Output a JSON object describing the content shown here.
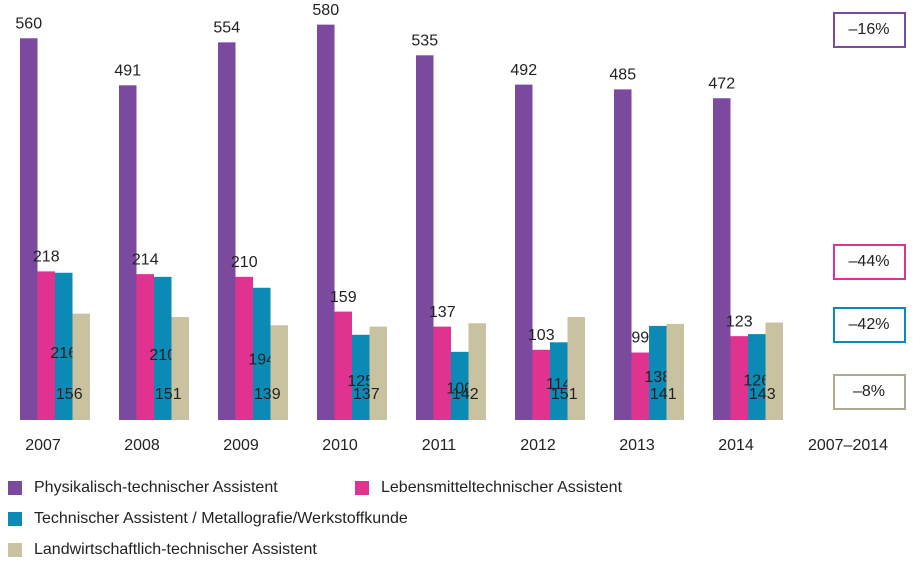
{
  "chart_data": {
    "type": "bar",
    "categories": [
      "2007",
      "2008",
      "2009",
      "2010",
      "2011",
      "2012",
      "2013",
      "2014"
    ],
    "change_label": "2007–2014",
    "ylim": [
      0,
      600
    ],
    "series": [
      {
        "name": "Physikalisch-technischer Assistent",
        "color": "#7b4a9e",
        "values": [
          560,
          491,
          554,
          580,
          535,
          492,
          485,
          472
        ],
        "change": {
          "value": -16,
          "label": "–16%"
        }
      },
      {
        "name": "Lebensmitteltechnischer Assistent",
        "color": "#e0338f",
        "values": [
          218,
          214,
          210,
          159,
          137,
          103,
          99,
          123
        ],
        "change": {
          "value": -44,
          "label": "–44%"
        }
      },
      {
        "name": "Technischer Assistent / Metallografie/Werkstoffkunde",
        "color": "#0a8ab5",
        "values": [
          216,
          210,
          194,
          125,
          100,
          114,
          138,
          126
        ],
        "change": {
          "value": -42,
          "label": "–42%"
        }
      },
      {
        "name": "Landwirtschaftlich-technischer Assistent",
        "color": "#c9c2a0",
        "values": [
          156,
          151,
          139,
          137,
          142,
          151,
          141,
          143
        ],
        "change": {
          "value": -8,
          "label": "–8%"
        }
      }
    ]
  }
}
